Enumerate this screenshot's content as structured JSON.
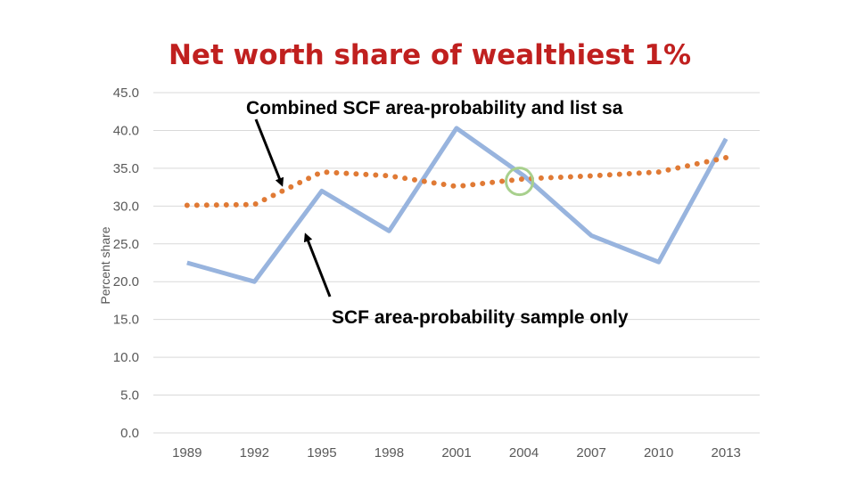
{
  "chart_data": {
    "type": "line",
    "title": "Net worth share of wealthiest 1%",
    "xlabel": "",
    "ylabel": "Percent share",
    "categories": [
      "1989",
      "1992",
      "1995",
      "1998",
      "2001",
      "2004",
      "2007",
      "2010",
      "2013"
    ],
    "y_ticks": [
      "0.0",
      "5.0",
      "10.0",
      "15.0",
      "20.0",
      "25.0",
      "30.0",
      "35.0",
      "40.0",
      "45.0"
    ],
    "ylim": [
      0,
      45
    ],
    "grid": true,
    "series": [
      {
        "name": "SCF area-probability sample only",
        "style": "solid",
        "color": "#98b4de",
        "values": [
          22.5,
          20.0,
          32.0,
          26.7,
          40.3,
          34.0,
          26.1,
          22.6,
          38.9
        ]
      },
      {
        "name": "Combined SCF area-probability and list sa",
        "style": "dotted",
        "color": "#e07a35",
        "values": [
          30.1,
          30.2,
          34.5,
          34.0,
          32.6,
          33.6,
          34.0,
          34.5,
          36.4
        ]
      }
    ],
    "annotations": [
      {
        "text": "Combined SCF area-probability and list sa",
        "points_to": "dotted series near 1994"
      },
      {
        "text": "SCF area-probability sample only",
        "points_to": "solid series near 1994"
      }
    ],
    "highlight": {
      "x": "2004",
      "y": 33.5,
      "color": "#a8d08d"
    }
  }
}
